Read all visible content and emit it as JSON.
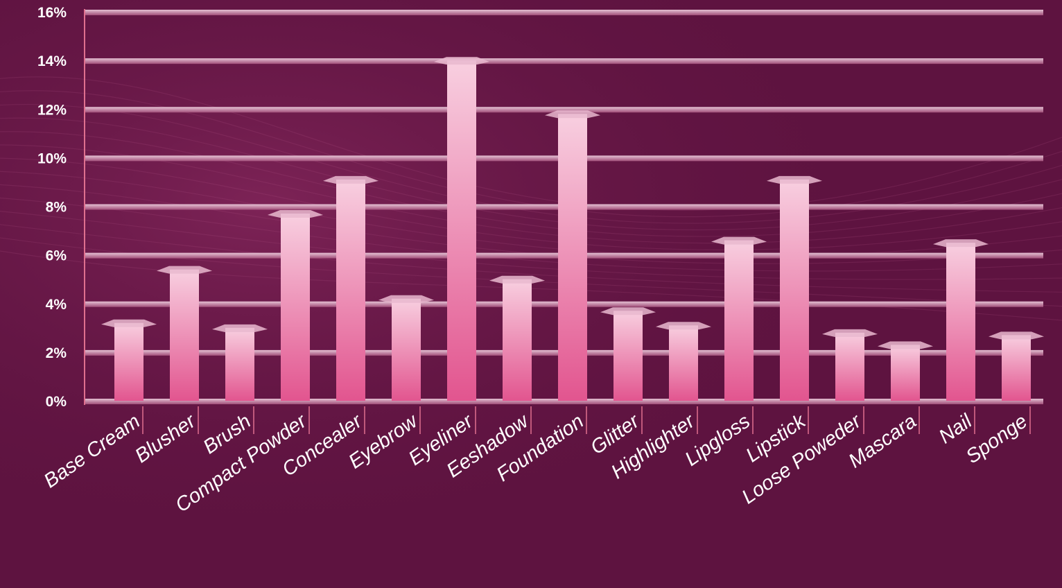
{
  "colors": {
    "background": "#5e1340",
    "background_light": "#8a2a60",
    "bar_top": "#f8cfe0",
    "bar_bottom": "#e2558f",
    "shelf": "#d9a9c1",
    "axis_line": "#e0708f"
  },
  "chart_data": {
    "type": "bar",
    "categories": [
      "Base Cream",
      "Blusher",
      "Brush",
      "Compact Powder",
      "Concealer",
      "Eyebrow",
      "Eyeliner",
      "Eeshadow",
      "Foundation",
      "Glitter",
      "Highlighter",
      "Lipgloss",
      "Lipstick",
      "Loose Poweder",
      "Mascara",
      "Nail",
      "Sponge"
    ],
    "values": [
      3.2,
      5.4,
      3.0,
      7.7,
      9.1,
      4.2,
      14.0,
      5.0,
      11.8,
      3.7,
      3.1,
      6.6,
      9.1,
      2.8,
      2.3,
      6.5,
      2.7
    ],
    "y_ticks": [
      "0%",
      "2%",
      "4%",
      "6%",
      "8%",
      "10%",
      "12%",
      "14%",
      "16%"
    ],
    "ylim": [
      0,
      16
    ],
    "unit": "%",
    "grid": true,
    "title": "",
    "xlabel": "",
    "ylabel": ""
  }
}
